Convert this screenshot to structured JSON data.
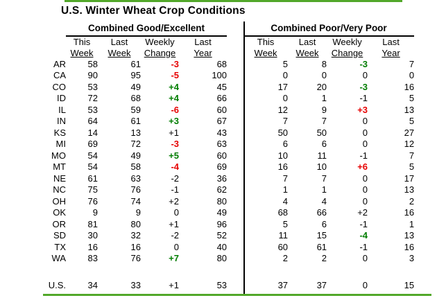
{
  "title": "U.S. Winter Wheat Crop Conditions",
  "colors": {
    "accent_line": "#52a82a",
    "change_improve_green": "#007d00",
    "change_decline_red": "#e60000",
    "text": "#000000"
  },
  "chart_data": {
    "type": "table",
    "title": "U.S. Winter Wheat Crop Conditions",
    "group_headers": [
      "Combined Good/Excellent",
      "Combined Poor/Very Poor"
    ],
    "sub_headers_line1": [
      "This",
      "Last",
      "Weekly",
      "Last"
    ],
    "sub_headers_line2": [
      "Week",
      "Week",
      "Change",
      "Year"
    ],
    "legend_note_colors": "colored changes: red = worsening, green = improving",
    "rows": [
      {
        "state": "AR",
        "ge": [
          "58",
          "61",
          "-3",
          "68"
        ],
        "ge_chg": "red",
        "pvp": [
          "5",
          "8",
          "-3",
          "7"
        ],
        "pvp_chg": "green"
      },
      {
        "state": "CA",
        "ge": [
          "90",
          "95",
          "-5",
          "100"
        ],
        "ge_chg": "red",
        "pvp": [
          "0",
          "0",
          "0",
          "0"
        ],
        "pvp_chg": "none"
      },
      {
        "state": "CO",
        "ge": [
          "53",
          "49",
          "+4",
          "45"
        ],
        "ge_chg": "green",
        "pvp": [
          "17",
          "20",
          "-3",
          "16"
        ],
        "pvp_chg": "green"
      },
      {
        "state": "ID",
        "ge": [
          "72",
          "68",
          "+4",
          "66"
        ],
        "ge_chg": "green",
        "pvp": [
          "0",
          "1",
          "-1",
          "5"
        ],
        "pvp_chg": "none"
      },
      {
        "state": "IL",
        "ge": [
          "53",
          "59",
          "-6",
          "60"
        ],
        "ge_chg": "red",
        "pvp": [
          "12",
          "9",
          "+3",
          "13"
        ],
        "pvp_chg": "red"
      },
      {
        "state": "IN",
        "ge": [
          "64",
          "61",
          "+3",
          "67"
        ],
        "ge_chg": "green",
        "pvp": [
          "7",
          "7",
          "0",
          "5"
        ],
        "pvp_chg": "none"
      },
      {
        "state": "KS",
        "ge": [
          "14",
          "13",
          "+1",
          "43"
        ],
        "ge_chg": "none",
        "pvp": [
          "50",
          "50",
          "0",
          "27"
        ],
        "pvp_chg": "none"
      },
      {
        "state": "MI",
        "ge": [
          "69",
          "72",
          "-3",
          "63"
        ],
        "ge_chg": "red",
        "pvp": [
          "6",
          "6",
          "0",
          "12"
        ],
        "pvp_chg": "none"
      },
      {
        "state": "MO",
        "ge": [
          "54",
          "49",
          "+5",
          "60"
        ],
        "ge_chg": "green",
        "pvp": [
          "10",
          "11",
          "-1",
          "7"
        ],
        "pvp_chg": "none"
      },
      {
        "state": "MT",
        "ge": [
          "54",
          "58",
          "-4",
          "69"
        ],
        "ge_chg": "red",
        "pvp": [
          "16",
          "10",
          "+6",
          "5"
        ],
        "pvp_chg": "red"
      },
      {
        "state": "NE",
        "ge": [
          "61",
          "63",
          "-2",
          "36"
        ],
        "ge_chg": "none",
        "pvp": [
          "7",
          "7",
          "0",
          "17"
        ],
        "pvp_chg": "none"
      },
      {
        "state": "NC",
        "ge": [
          "75",
          "76",
          "-1",
          "62"
        ],
        "ge_chg": "none",
        "pvp": [
          "1",
          "1",
          "0",
          "13"
        ],
        "pvp_chg": "none"
      },
      {
        "state": "OH",
        "ge": [
          "76",
          "74",
          "+2",
          "80"
        ],
        "ge_chg": "none",
        "pvp": [
          "4",
          "4",
          "0",
          "2"
        ],
        "pvp_chg": "none"
      },
      {
        "state": "OK",
        "ge": [
          "9",
          "9",
          "0",
          "49"
        ],
        "ge_chg": "none",
        "pvp": [
          "68",
          "66",
          "+2",
          "16"
        ],
        "pvp_chg": "none"
      },
      {
        "state": "OR",
        "ge": [
          "81",
          "80",
          "+1",
          "96"
        ],
        "ge_chg": "none",
        "pvp": [
          "5",
          "6",
          "-1",
          "1"
        ],
        "pvp_chg": "none"
      },
      {
        "state": "SD",
        "ge": [
          "30",
          "32",
          "-2",
          "52"
        ],
        "ge_chg": "none",
        "pvp": [
          "11",
          "15",
          "-4",
          "13"
        ],
        "pvp_chg": "green"
      },
      {
        "state": "TX",
        "ge": [
          "16",
          "16",
          "0",
          "40"
        ],
        "ge_chg": "none",
        "pvp": [
          "60",
          "61",
          "-1",
          "16"
        ],
        "pvp_chg": "none"
      },
      {
        "state": "WA",
        "ge": [
          "83",
          "76",
          "+7",
          "80"
        ],
        "ge_chg": "green",
        "pvp": [
          "2",
          "2",
          "0",
          "3"
        ],
        "pvp_chg": "none"
      }
    ],
    "total_row": {
      "state": "U.S.",
      "ge": [
        "34",
        "33",
        "+1",
        "53"
      ],
      "ge_chg": "none",
      "pvp": [
        "37",
        "37",
        "0",
        "15"
      ],
      "pvp_chg": "none"
    }
  }
}
